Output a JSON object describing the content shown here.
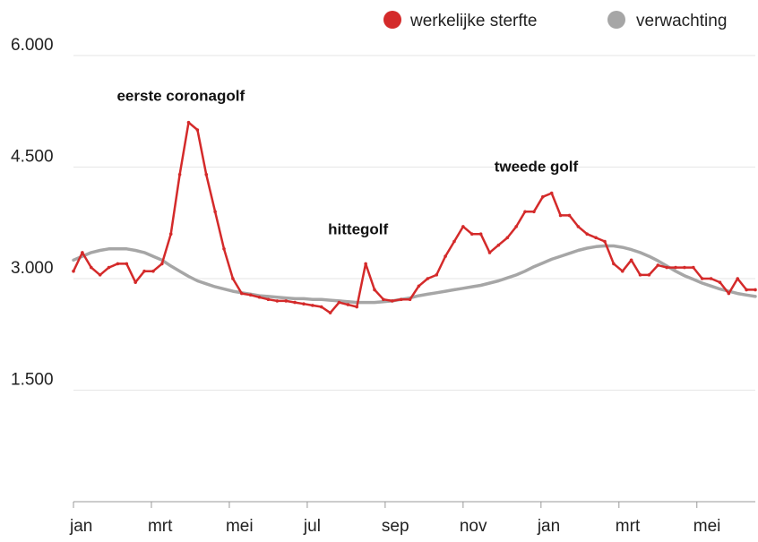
{
  "chart_data": {
    "type": "line",
    "ylim": [
      0,
      6000
    ],
    "y_ticks": [
      {
        "value": 1500,
        "label": "1.500"
      },
      {
        "value": 3000,
        "label": "3.000"
      },
      {
        "value": 4500,
        "label": "4.500"
      },
      {
        "value": 6000,
        "label": "6.000"
      }
    ],
    "x_ticks": [
      "jan",
      "mrt",
      "mei",
      "jul",
      "sep",
      "nov",
      "jan",
      "mrt",
      "mei"
    ],
    "grid": "horizontal",
    "legend_position": "top-right",
    "series": [
      {
        "name": "werkelijke sterfte",
        "color": "#d42a2a",
        "values": [
          3100,
          3350,
          3150,
          3050,
          3150,
          3200,
          3200,
          2950,
          3100,
          3100,
          3200,
          3600,
          4400,
          5100,
          5000,
          4400,
          3900,
          3400,
          3000,
          2800,
          2780,
          2750,
          2720,
          2700,
          2700,
          2680,
          2660,
          2640,
          2620,
          2540,
          2680,
          2650,
          2620,
          3200,
          2850,
          2720,
          2700,
          2720,
          2720,
          2900,
          3000,
          3050,
          3300,
          3500,
          3700,
          3600,
          3600,
          3350,
          3450,
          3550,
          3700,
          3900,
          3900,
          4100,
          4150,
          3850,
          3850,
          3700,
          3600,
          3550,
          3500,
          3200,
          3100,
          3250,
          3050,
          3050,
          3180,
          3150,
          3150,
          3150,
          3150,
          3000,
          3000,
          2950,
          2800,
          3000,
          2850,
          2850
        ]
      },
      {
        "name": "verwachting",
        "color": "#a6a6a6",
        "values": [
          3250,
          3300,
          3350,
          3380,
          3400,
          3400,
          3400,
          3380,
          3350,
          3300,
          3250,
          3170,
          3100,
          3030,
          2970,
          2930,
          2890,
          2860,
          2830,
          2810,
          2790,
          2770,
          2760,
          2750,
          2740,
          2730,
          2730,
          2720,
          2720,
          2710,
          2700,
          2690,
          2680,
          2680,
          2680,
          2690,
          2700,
          2720,
          2740,
          2770,
          2790,
          2810,
          2830,
          2850,
          2870,
          2890,
          2910,
          2940,
          2970,
          3010,
          3050,
          3100,
          3160,
          3210,
          3260,
          3300,
          3340,
          3380,
          3410,
          3430,
          3440,
          3440,
          3420,
          3390,
          3350,
          3300,
          3240,
          3170,
          3100,
          3040,
          2990,
          2940,
          2900,
          2860,
          2830,
          2800,
          2780,
          2760
        ]
      }
    ],
    "annotations": [
      {
        "text": "eerste coronagolf",
        "x": 13,
        "y": 5100
      },
      {
        "text": "hittegolf",
        "x": 33,
        "y": 3200
      },
      {
        "text": "tweede golf",
        "x": 54,
        "y": 4150
      }
    ]
  }
}
